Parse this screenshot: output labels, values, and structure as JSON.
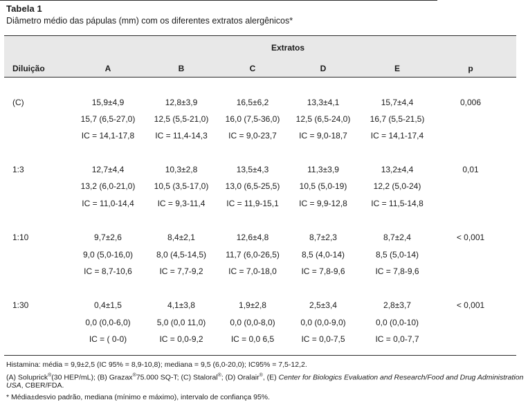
{
  "table": {
    "title": "Tabela 1",
    "subtitle": "Diâmetro médio das pápulas (mm) com os diferentes extratos alergênicos*",
    "header": {
      "dilution_label": "Diluição",
      "group_label": "Extratos",
      "columns": [
        "A",
        "B",
        "C",
        "D",
        "E",
        "p"
      ]
    },
    "rows": [
      {
        "dilution": "(C)",
        "p": "0,006",
        "lines": [
          [
            "15,9±4,9",
            "12,8±3,9",
            "16,5±6,2",
            "13,3±4,1",
            "15,7±4,4"
          ],
          [
            "15,7 (6,5-27,0)",
            "12,5 (5,5-21,0)",
            "16,0 (7,5-36,0)",
            "12,5 (6,5-24,0)",
            "16,7 (5,5-21,5)"
          ],
          [
            "IC = 14,1-17,8",
            "IC = 11,4-14,3",
            "IC = 9,0-23,7",
            "IC = 9,0-18,7",
            "IC = 14,1-17,4"
          ]
        ]
      },
      {
        "dilution": "1:3",
        "p": "0,01",
        "lines": [
          [
            "12,7±4,4",
            "10,3±2,8",
            "13,5±4,3",
            "11,3±3,9",
            "13,2±4,4"
          ],
          [
            "13,2 (6,0-21,0)",
            "10,5 (3,5-17,0)",
            "13,0 (6,5-25,5)",
            "10,5 (5,0-19)",
            "12,2 (5,0-24)"
          ],
          [
            "IC = 11,0-14,4",
            "IC = 9,3-11,4",
            "IC = 11,9-15,1",
            "IC = 9,9-12,8",
            "IC = 11,5-14,8"
          ]
        ]
      },
      {
        "dilution": "1:10",
        "p": "< 0,001",
        "lines": [
          [
            "9,7±2,6",
            "8,4±2,1",
            "12,6±4,8",
            "8,7±2,3",
            "8,7±2,4"
          ],
          [
            "9,0 (5,0-16,0)",
            "8,0 (4,5-14,5)",
            "11,7 (6,0-26,5)",
            "8,5 (4,0-14)",
            "8,5 (5,0-14)"
          ],
          [
            "IC = 8,7-10,6",
            "IC = 7,7-9,2",
            "IC = 7,0-18,0",
            "IC = 7,8-9,6",
            "IC = 7,8-9,6"
          ]
        ]
      },
      {
        "dilution": "1:30",
        "p": "< 0,001",
        "lines": [
          [
            "0,4±1,5",
            "4,1±3,8",
            "1,9±2,8",
            "2,5±3,4",
            "2,8±3,7"
          ],
          [
            "0,0 (0,0-6,0)",
            "5,0 (0,0 11,0)",
            "0,0 (0,0-8,0)",
            "0,0 (0,0-9,0)",
            "0,0 (0,0-10)"
          ],
          [
            "IC = ( 0-0)",
            "IC = 0,0-9,2",
            "IC = 0,0 6,5",
            "IC = 0,0-7,5",
            "IC = 0,0-7,7"
          ]
        ]
      }
    ],
    "footnotes": {
      "histamina": "Histamina: média = 9,9±2,5 (IC 95% = 8,9-10,8); mediana = 9,5 (6,0-20,0); IC95% = 7,5-12,2.",
      "extracts_a": "(A) Soluprick",
      "extracts_a_reg": "®",
      "extracts_b": "(30 HEP/mL); (B) Grazax",
      "extracts_b_reg": "®",
      "extracts_c": "75.000 SQ-T; (C) Staloral",
      "extracts_c_reg": "®",
      "extracts_d": "; (D) Oralair",
      "extracts_d_reg": "®",
      "extracts_e": ", (E) ",
      "extracts_e_italic": "Center for Biologics Evaluation and Research/Food and Drug Administration",
      "extracts_line2_italic": "USA",
      "extracts_line2_rest": ", CBER/FDA.",
      "legend": "* Média±desvio padrão, mediana (mínimo e máximo), intervalo de confiança 95%."
    }
  }
}
